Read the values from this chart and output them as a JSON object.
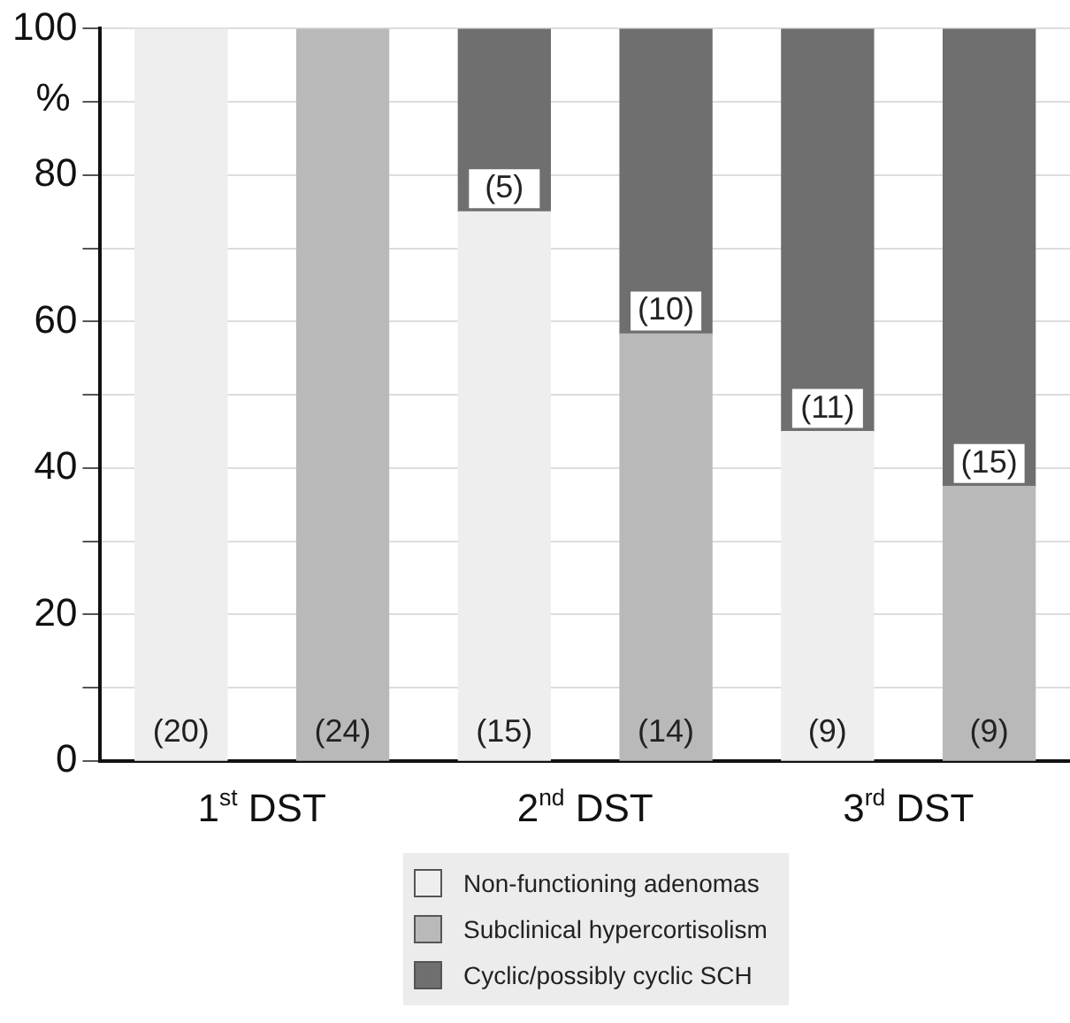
{
  "chart_data": {
    "type": "bar",
    "ylabel": "%",
    "categories": [
      "1$^{st}$ DST",
      null,
      "2$^{nd}$ DST",
      null,
      "3$^{rd}$ DST",
      null
    ],
    "series": [
      {
        "name": "Non-functioning adenomas",
        "color": "#eeeeee",
        "values": [
          100,
          null,
          75,
          null,
          45,
          null
        ]
      },
      {
        "name": "Subclinical hypercortisolism",
        "color": "#b9b9b9",
        "values": [
          null,
          100,
          null,
          58.3,
          null,
          37.5
        ]
      },
      {
        "name": "Cyclic/possibly cyclic SCH",
        "color": "#6f6f6f",
        "values": [
          null,
          null,
          25,
          41.7,
          55,
          62.5
        ]
      }
    ],
    "annotations": [
      "(20)",
      "(15)",
      "(9)",
      "(24)",
      "(14)",
      "(9)",
      "(5)",
      "(10)",
      "(11)",
      "(15)"
    ],
    "stacked": true,
    "ylim": [
      0,
      100
    ],
    "yticks": [
      0,
      {
        "value": 10,
        "label": null
      },
      20,
      {
        "value": 30,
        "label": null
      },
      40,
      {
        "value": 50,
        "label": null
      },
      60,
      {
        "value": 70,
        "label": null
      },
      80,
      {
        "value": 90,
        "label": null
      },
      100
    ],
    "grid": "y",
    "legend": "bottom"
  }
}
